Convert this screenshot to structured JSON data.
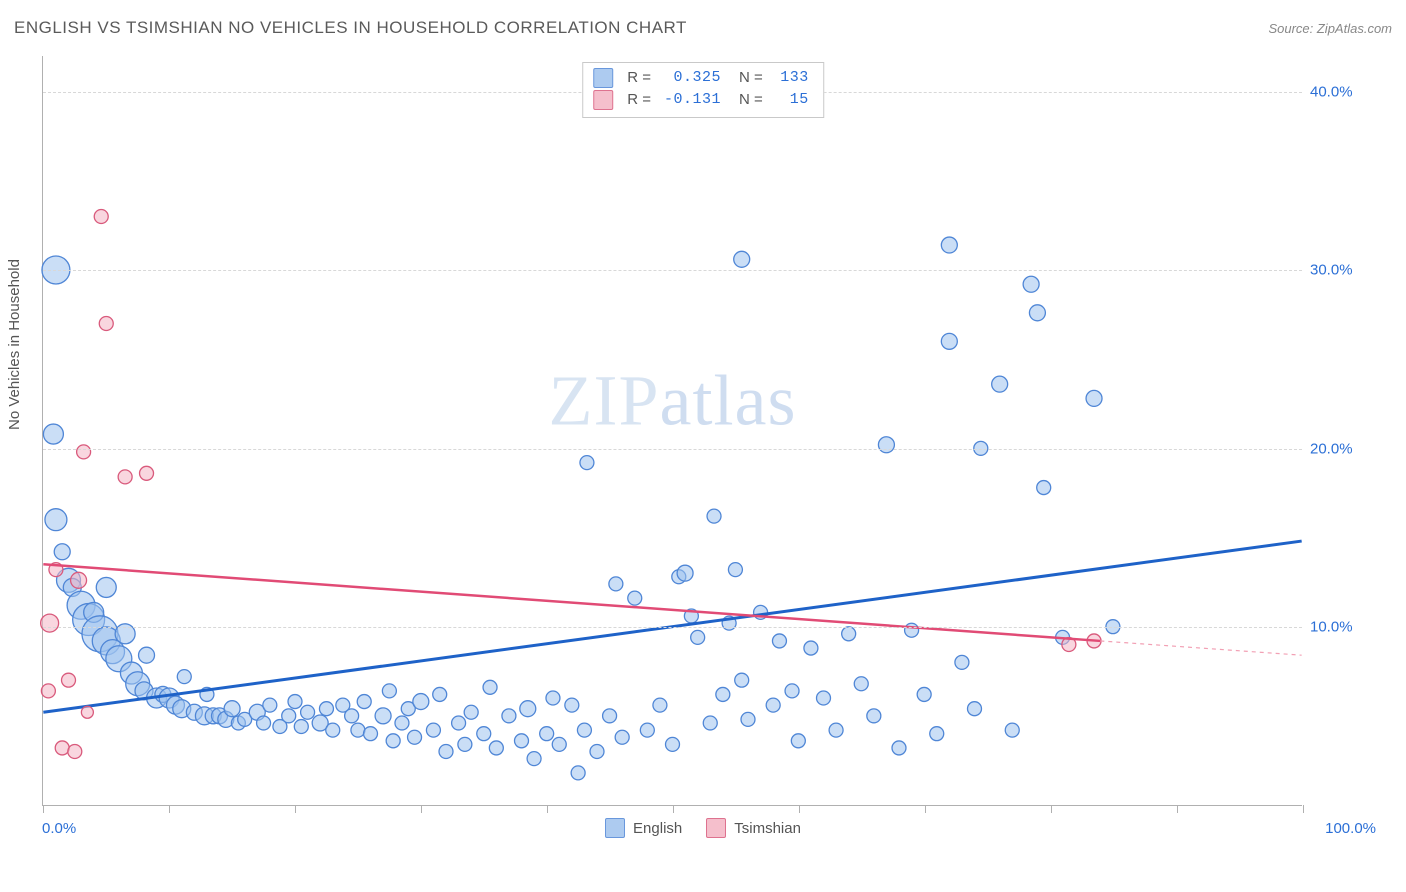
{
  "title": "ENGLISH VS TSIMSHIAN NO VEHICLES IN HOUSEHOLD CORRELATION CHART",
  "source_label": "Source: ZipAtlas.com",
  "ylabel": "No Vehicles in Household",
  "watermark_bold": "ZIP",
  "watermark_thin": "atlas",
  "chart": {
    "type": "scatter-correlation",
    "xlim": [
      0,
      100
    ],
    "ylim": [
      0,
      42
    ],
    "x_tick_positions": [
      0,
      10,
      20,
      30,
      40,
      50,
      60,
      70,
      80,
      90,
      100
    ],
    "x_min_label": "0.0%",
    "x_max_label": "100.0%",
    "y_gridlines": [
      10,
      20,
      30,
      40
    ],
    "y_tick_labels": [
      "10.0%",
      "20.0%",
      "30.0%",
      "40.0%"
    ],
    "grid_color": "#d8d8d8",
    "axis_color": "#b0b0b0",
    "background": "#ffffff",
    "tick_label_color": "#2b6fd6",
    "tick_fontsize": 15,
    "series": [
      {
        "name": "English",
        "fill": "#9fc3ee",
        "stroke": "#4f86d6",
        "fill_opacity": 0.55,
        "stroke_width": 1.3,
        "stats": {
          "R": "0.325",
          "N": "133"
        },
        "trend": {
          "x1": 0,
          "y1": 5.2,
          "x2": 100,
          "y2": 14.8,
          "color": "#1e62c8",
          "width": 3,
          "dash": "none"
        },
        "points": [
          {
            "x": 1,
            "y": 30,
            "r": 14
          },
          {
            "x": 0.8,
            "y": 20.8,
            "r": 10
          },
          {
            "x": 1,
            "y": 16,
            "r": 11
          },
          {
            "x": 1.5,
            "y": 14.2,
            "r": 8
          },
          {
            "x": 2,
            "y": 12.6,
            "r": 12
          },
          {
            "x": 2.3,
            "y": 12.2,
            "r": 9
          },
          {
            "x": 3,
            "y": 11.2,
            "r": 14
          },
          {
            "x": 3.6,
            "y": 10.4,
            "r": 16
          },
          {
            "x": 4,
            "y": 10.8,
            "r": 10
          },
          {
            "x": 4.5,
            "y": 9.6,
            "r": 18
          },
          {
            "x": 5,
            "y": 9.2,
            "r": 14
          },
          {
            "x": 5,
            "y": 12.2,
            "r": 10
          },
          {
            "x": 5.5,
            "y": 8.6,
            "r": 12
          },
          {
            "x": 6,
            "y": 8.2,
            "r": 13
          },
          {
            "x": 6.5,
            "y": 9.6,
            "r": 10
          },
          {
            "x": 7,
            "y": 7.4,
            "r": 11
          },
          {
            "x": 7.5,
            "y": 6.8,
            "r": 12
          },
          {
            "x": 8,
            "y": 6.4,
            "r": 9
          },
          {
            "x": 8.2,
            "y": 8.4,
            "r": 8
          },
          {
            "x": 9,
            "y": 6.0,
            "r": 10
          },
          {
            "x": 9.5,
            "y": 6.2,
            "r": 8
          },
          {
            "x": 10,
            "y": 6.0,
            "r": 10
          },
          {
            "x": 10.5,
            "y": 5.6,
            "r": 9
          },
          {
            "x": 11,
            "y": 5.4,
            "r": 9
          },
          {
            "x": 11.2,
            "y": 7.2,
            "r": 7
          },
          {
            "x": 12,
            "y": 5.2,
            "r": 8
          },
          {
            "x": 12.8,
            "y": 5.0,
            "r": 9
          },
          {
            "x": 13,
            "y": 6.2,
            "r": 7
          },
          {
            "x": 13.5,
            "y": 5.0,
            "r": 8
          },
          {
            "x": 14,
            "y": 5.0,
            "r": 8
          },
          {
            "x": 14.5,
            "y": 4.8,
            "r": 8
          },
          {
            "x": 15,
            "y": 5.4,
            "r": 8
          },
          {
            "x": 15.5,
            "y": 4.6,
            "r": 7
          },
          {
            "x": 16,
            "y": 4.8,
            "r": 7
          },
          {
            "x": 17,
            "y": 5.2,
            "r": 8
          },
          {
            "x": 17.5,
            "y": 4.6,
            "r": 7
          },
          {
            "x": 18,
            "y": 5.6,
            "r": 7
          },
          {
            "x": 18.8,
            "y": 4.4,
            "r": 7
          },
          {
            "x": 19.5,
            "y": 5.0,
            "r": 7
          },
          {
            "x": 20,
            "y": 5.8,
            "r": 7
          },
          {
            "x": 20.5,
            "y": 4.4,
            "r": 7
          },
          {
            "x": 21,
            "y": 5.2,
            "r": 7
          },
          {
            "x": 22,
            "y": 4.6,
            "r": 8
          },
          {
            "x": 22.5,
            "y": 5.4,
            "r": 7
          },
          {
            "x": 23,
            "y": 4.2,
            "r": 7
          },
          {
            "x": 23.8,
            "y": 5.6,
            "r": 7
          },
          {
            "x": 24.5,
            "y": 5.0,
            "r": 7
          },
          {
            "x": 25,
            "y": 4.2,
            "r": 7
          },
          {
            "x": 25.5,
            "y": 5.8,
            "r": 7
          },
          {
            "x": 26,
            "y": 4.0,
            "r": 7
          },
          {
            "x": 27,
            "y": 5.0,
            "r": 8
          },
          {
            "x": 27.5,
            "y": 6.4,
            "r": 7
          },
          {
            "x": 27.8,
            "y": 3.6,
            "r": 7
          },
          {
            "x": 28.5,
            "y": 4.6,
            "r": 7
          },
          {
            "x": 29,
            "y": 5.4,
            "r": 7
          },
          {
            "x": 29.5,
            "y": 3.8,
            "r": 7
          },
          {
            "x": 30,
            "y": 5.8,
            "r": 8
          },
          {
            "x": 31,
            "y": 4.2,
            "r": 7
          },
          {
            "x": 31.5,
            "y": 6.2,
            "r": 7
          },
          {
            "x": 32,
            "y": 3.0,
            "r": 7
          },
          {
            "x": 33,
            "y": 4.6,
            "r": 7
          },
          {
            "x": 33.5,
            "y": 3.4,
            "r": 7
          },
          {
            "x": 34,
            "y": 5.2,
            "r": 7
          },
          {
            "x": 35,
            "y": 4.0,
            "r": 7
          },
          {
            "x": 35.5,
            "y": 6.6,
            "r": 7
          },
          {
            "x": 36,
            "y": 3.2,
            "r": 7
          },
          {
            "x": 37,
            "y": 5.0,
            "r": 7
          },
          {
            "x": 38,
            "y": 3.6,
            "r": 7
          },
          {
            "x": 38.5,
            "y": 5.4,
            "r": 8
          },
          {
            "x": 39,
            "y": 2.6,
            "r": 7
          },
          {
            "x": 40,
            "y": 4.0,
            "r": 7
          },
          {
            "x": 40.5,
            "y": 6.0,
            "r": 7
          },
          {
            "x": 41,
            "y": 3.4,
            "r": 7
          },
          {
            "x": 42,
            "y": 5.6,
            "r": 7
          },
          {
            "x": 42.5,
            "y": 1.8,
            "r": 7
          },
          {
            "x": 43,
            "y": 4.2,
            "r": 7
          },
          {
            "x": 43.2,
            "y": 19.2,
            "r": 7
          },
          {
            "x": 44,
            "y": 3.0,
            "r": 7
          },
          {
            "x": 45,
            "y": 5.0,
            "r": 7
          },
          {
            "x": 45.5,
            "y": 12.4,
            "r": 7
          },
          {
            "x": 46,
            "y": 3.8,
            "r": 7
          },
          {
            "x": 47,
            "y": 11.6,
            "r": 7
          },
          {
            "x": 48,
            "y": 4.2,
            "r": 7
          },
          {
            "x": 49,
            "y": 5.6,
            "r": 7
          },
          {
            "x": 50,
            "y": 3.4,
            "r": 7
          },
          {
            "x": 50.5,
            "y": 12.8,
            "r": 7
          },
          {
            "x": 51,
            "y": 13.0,
            "r": 8
          },
          {
            "x": 51.5,
            "y": 10.6,
            "r": 7
          },
          {
            "x": 52,
            "y": 9.4,
            "r": 7
          },
          {
            "x": 53,
            "y": 4.6,
            "r": 7
          },
          {
            "x": 53.3,
            "y": 16.2,
            "r": 7
          },
          {
            "x": 54,
            "y": 6.2,
            "r": 7
          },
          {
            "x": 54.5,
            "y": 10.2,
            "r": 7
          },
          {
            "x": 55,
            "y": 13.2,
            "r": 7
          },
          {
            "x": 55.5,
            "y": 7.0,
            "r": 7
          },
          {
            "x": 55.5,
            "y": 30.6,
            "r": 8
          },
          {
            "x": 56,
            "y": 4.8,
            "r": 7
          },
          {
            "x": 57,
            "y": 10.8,
            "r": 7
          },
          {
            "x": 58,
            "y": 5.6,
            "r": 7
          },
          {
            "x": 58.5,
            "y": 9.2,
            "r": 7
          },
          {
            "x": 59.5,
            "y": 6.4,
            "r": 7
          },
          {
            "x": 60,
            "y": 3.6,
            "r": 7
          },
          {
            "x": 61,
            "y": 8.8,
            "r": 7
          },
          {
            "x": 62,
            "y": 6.0,
            "r": 7
          },
          {
            "x": 63,
            "y": 4.2,
            "r": 7
          },
          {
            "x": 64,
            "y": 9.6,
            "r": 7
          },
          {
            "x": 65,
            "y": 6.8,
            "r": 7
          },
          {
            "x": 66,
            "y": 5.0,
            "r": 7
          },
          {
            "x": 67,
            "y": 20.2,
            "r": 8
          },
          {
            "x": 68,
            "y": 3.2,
            "r": 7
          },
          {
            "x": 69,
            "y": 9.8,
            "r": 7
          },
          {
            "x": 70,
            "y": 6.2,
            "r": 7
          },
          {
            "x": 71,
            "y": 4.0,
            "r": 7
          },
          {
            "x": 72,
            "y": 31.4,
            "r": 8
          },
          {
            "x": 72,
            "y": 26.0,
            "r": 8
          },
          {
            "x": 73,
            "y": 8.0,
            "r": 7
          },
          {
            "x": 74,
            "y": 5.4,
            "r": 7
          },
          {
            "x": 74.5,
            "y": 20.0,
            "r": 7
          },
          {
            "x": 76,
            "y": 23.6,
            "r": 8
          },
          {
            "x": 77,
            "y": 4.2,
            "r": 7
          },
          {
            "x": 78.5,
            "y": 29.2,
            "r": 8
          },
          {
            "x": 79,
            "y": 27.6,
            "r": 8
          },
          {
            "x": 79.5,
            "y": 17.8,
            "r": 7
          },
          {
            "x": 81,
            "y": 9.4,
            "r": 7
          },
          {
            "x": 83.5,
            "y": 22.8,
            "r": 8
          },
          {
            "x": 85,
            "y": 10.0,
            "r": 7
          }
        ]
      },
      {
        "name": "Tsimshian",
        "fill": "#f4b4c4",
        "stroke": "#d95a7c",
        "fill_opacity": 0.55,
        "stroke_width": 1.3,
        "stats": {
          "R": "-0.131",
          "N": "15"
        },
        "trend": {
          "x1": 0,
          "y1": 13.5,
          "x2": 84,
          "y2": 9.2,
          "color": "#e14b75",
          "width": 2.5,
          "dash": "none"
        },
        "trend_extrapolate": {
          "x1": 84,
          "y1": 9.2,
          "x2": 100,
          "y2": 8.4,
          "color": "#f2a0b4",
          "width": 1.2,
          "dash": "4,4"
        },
        "points": [
          {
            "x": 0.5,
            "y": 10.2,
            "r": 9
          },
          {
            "x": 0.4,
            "y": 6.4,
            "r": 7
          },
          {
            "x": 1.5,
            "y": 3.2,
            "r": 7
          },
          {
            "x": 2.5,
            "y": 3.0,
            "r": 7
          },
          {
            "x": 2.8,
            "y": 12.6,
            "r": 8
          },
          {
            "x": 3.2,
            "y": 19.8,
            "r": 7
          },
          {
            "x": 4.6,
            "y": 33.0,
            "r": 7
          },
          {
            "x": 5.0,
            "y": 27.0,
            "r": 7
          },
          {
            "x": 6.5,
            "y": 18.4,
            "r": 7
          },
          {
            "x": 8.2,
            "y": 18.6,
            "r": 7
          },
          {
            "x": 2.0,
            "y": 7.0,
            "r": 7
          },
          {
            "x": 1.0,
            "y": 13.2,
            "r": 7
          },
          {
            "x": 81.5,
            "y": 9.0,
            "r": 7
          },
          {
            "x": 83.5,
            "y": 9.2,
            "r": 7
          },
          {
            "x": 3.5,
            "y": 5.2,
            "r": 6
          }
        ]
      }
    ],
    "legend_bottom": [
      "English",
      "Tsimshian"
    ]
  }
}
